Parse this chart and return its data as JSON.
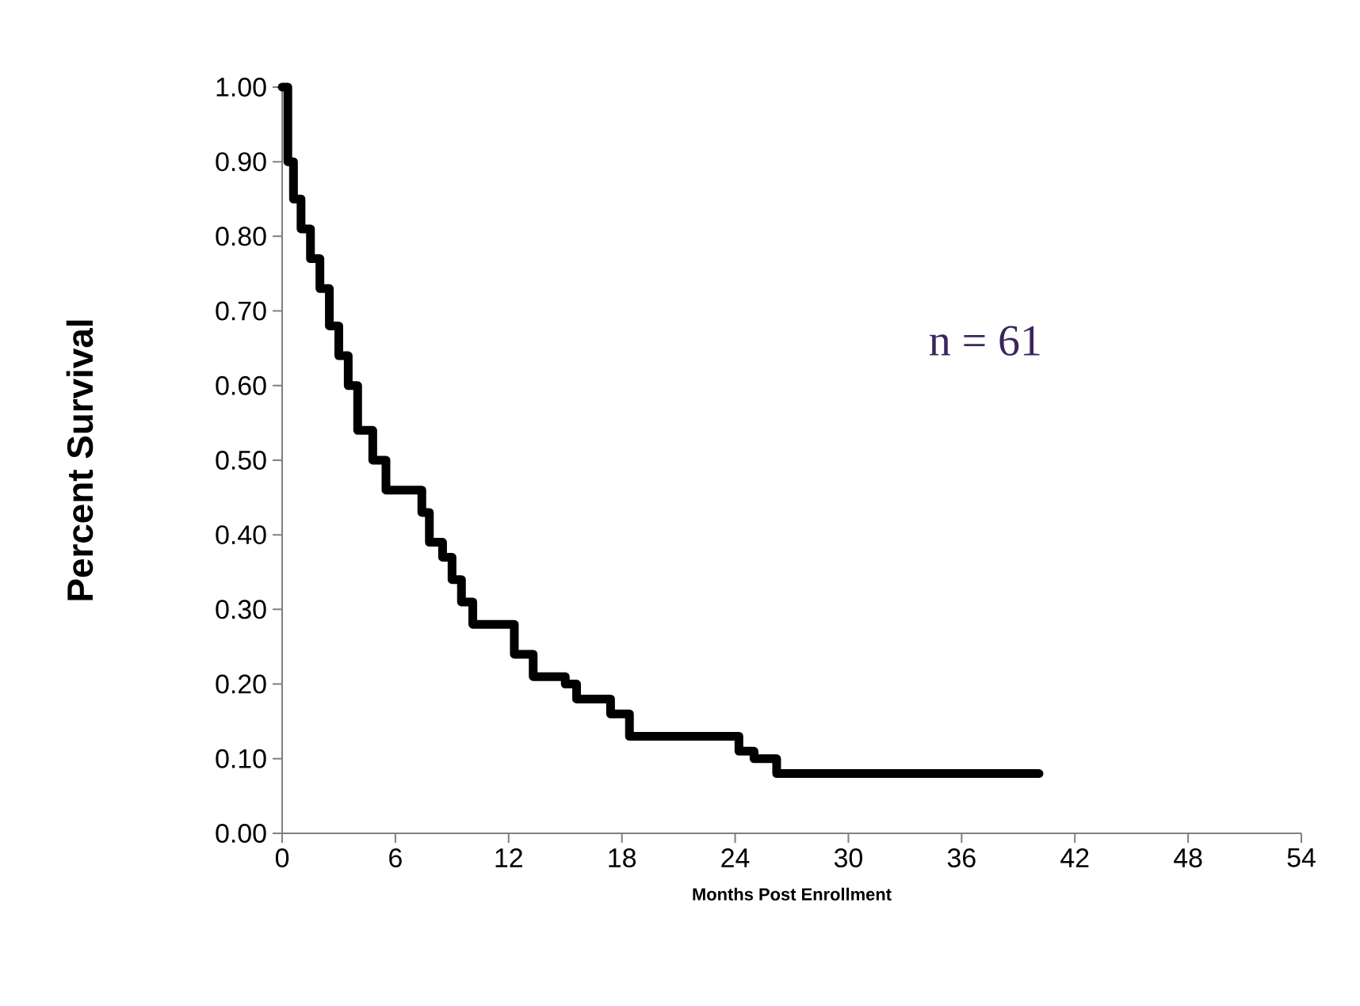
{
  "chart_data": {
    "type": "step",
    "xlabel": "Months Post Enrollment",
    "ylabel": "Percent Survival",
    "annotations": [
      "n = 61"
    ],
    "x": [
      0,
      0.3,
      0.6,
      1,
      1.5,
      2,
      2.5,
      3,
      3.5,
      4,
      4.8,
      5.5,
      7.4,
      7.8,
      8.5,
      9,
      9.5,
      10.1,
      12.3,
      13.3,
      15.0,
      15.6,
      17.4,
      18.4,
      24.2,
      25,
      26.2,
      40.1
    ],
    "series": [
      {
        "color": "#000000",
        "values": [
          1.0,
          0.9,
          0.85,
          0.81,
          0.77,
          0.73,
          0.68,
          0.64,
          0.6,
          0.54,
          0.5,
          0.46,
          0.43,
          0.39,
          0.37,
          0.34,
          0.31,
          0.28,
          0.24,
          0.21,
          0.2,
          0.18,
          0.16,
          0.13,
          0.11,
          0.1,
          0.08,
          0.08
        ]
      }
    ],
    "xlim": [
      0,
      54
    ],
    "xticks": [
      0,
      6,
      12,
      18,
      24,
      30,
      36,
      42,
      48,
      54
    ],
    "ylim": [
      0,
      1
    ],
    "yticks": [
      {
        "value": 0,
        "label": "0.00"
      },
      {
        "value": 0.1,
        "label": "0.10"
      },
      {
        "value": 0.2,
        "label": "0.20"
      },
      {
        "value": 0.3,
        "label": "0.30"
      },
      {
        "value": 0.4,
        "label": "0.40"
      },
      {
        "value": 0.5,
        "label": "0.50"
      },
      {
        "value": 0.6,
        "label": "0.60"
      },
      {
        "value": 0.7,
        "label": "0.70"
      },
      {
        "value": 0.8,
        "label": "0.80"
      },
      {
        "value": 0.9,
        "label": "0.90"
      },
      {
        "value": 1.0,
        "label": "1.00"
      }
    ],
    "grid": false,
    "legend": false,
    "marker": "none",
    "line_style": "solid"
  }
}
